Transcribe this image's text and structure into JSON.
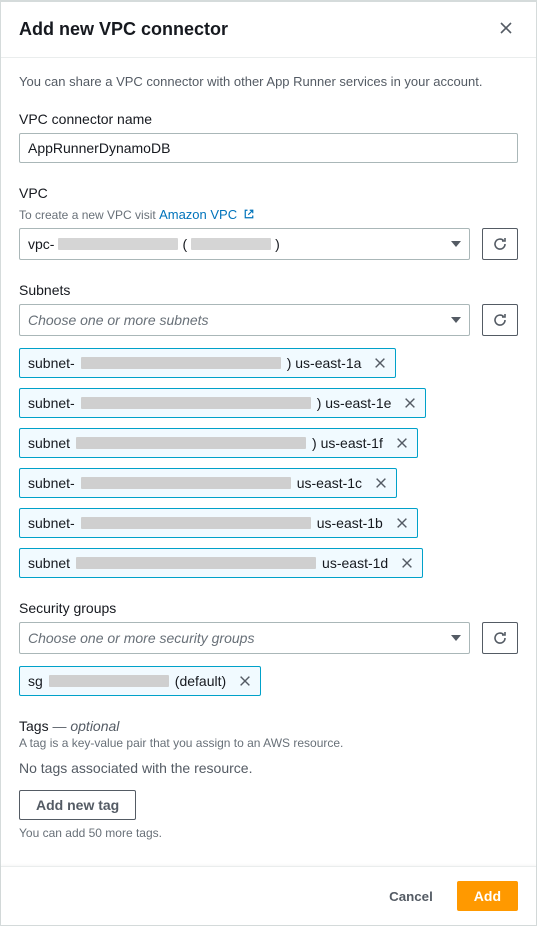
{
  "header": {
    "title": "Add new VPC connector"
  },
  "intro": "You can share a VPC connector with other App Runner services in your account.",
  "name": {
    "label": "VPC connector name",
    "value": "AppRunnerDynamoDB"
  },
  "vpc": {
    "label": "VPC",
    "hint_prefix": "To create a new VPC visit ",
    "link_text": "Amazon VPC",
    "selected_prefix": "vpc-",
    "redact1_w": 120,
    "selected_mid": " (",
    "redact2_w": 80,
    "selected_suffix": ")"
  },
  "subnets": {
    "label": "Subnets",
    "placeholder": "Choose one or more subnets",
    "items": [
      {
        "prefix": "subnet-",
        "redact_w": 200,
        "az": ") us-east-1a"
      },
      {
        "prefix": "subnet-",
        "redact_w": 230,
        "az": ") us-east-1e"
      },
      {
        "prefix": "subnet",
        "redact_w": 230,
        "az": ") us-east-1f"
      },
      {
        "prefix": "subnet-",
        "redact_w": 210,
        "az": "us-east-1c"
      },
      {
        "prefix": "subnet-",
        "redact_w": 230,
        "az": "us-east-1b"
      },
      {
        "prefix": "subnet",
        "redact_w": 240,
        "az": "us-east-1d"
      }
    ]
  },
  "sg": {
    "label": "Security groups",
    "placeholder": "Choose one or more security groups",
    "items": [
      {
        "prefix": "sg",
        "redact_w": 120,
        "suffix": "(default)"
      }
    ]
  },
  "tags": {
    "label": "Tags",
    "optional": " — optional",
    "desc": "A tag is a key-value pair that you assign to an AWS resource.",
    "empty": "No tags associated with the resource.",
    "add_btn": "Add new tag",
    "hint": "You can add 50 more tags."
  },
  "footer": {
    "cancel": "Cancel",
    "add": "Add"
  }
}
